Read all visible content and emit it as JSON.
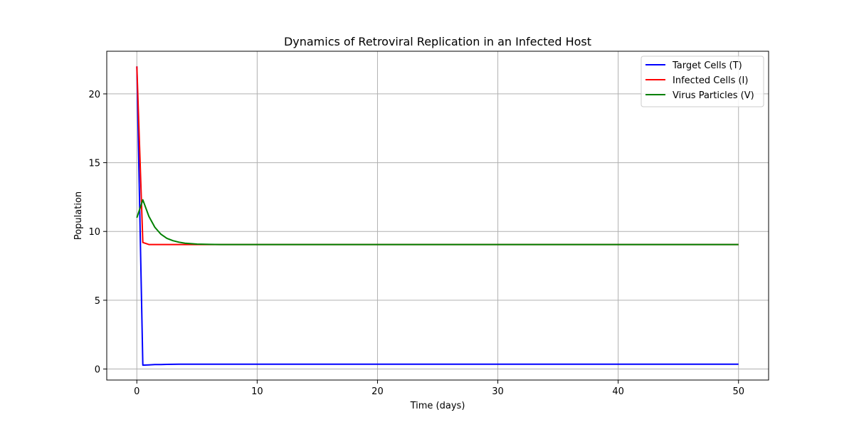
{
  "chart_data": {
    "type": "line",
    "title": "Dynamics of Retroviral Replication in an Infected Host",
    "xlabel": "Time (days)",
    "ylabel": "Population",
    "xlim": [
      -2.5,
      52.5
    ],
    "ylim": [
      -0.8,
      23.1
    ],
    "xticks": [
      0,
      10,
      20,
      30,
      40,
      50
    ],
    "yticks": [
      0,
      5,
      10,
      15,
      20
    ],
    "grid": true,
    "legend_position": "top-right",
    "x": [
      0,
      0.5,
      1,
      1.5,
      2,
      2.5,
      3,
      3.5,
      4,
      5,
      6,
      7,
      8,
      10,
      15,
      20,
      30,
      40,
      50
    ],
    "series": [
      {
        "name": "Target Cells (T)",
        "color": "#0000ff",
        "values": [
          22.0,
          0.28,
          0.3,
          0.32,
          0.33,
          0.34,
          0.345,
          0.35,
          0.35,
          0.35,
          0.35,
          0.35,
          0.35,
          0.35,
          0.35,
          0.35,
          0.35,
          0.35,
          0.35
        ]
      },
      {
        "name": "Infected Cells (I)",
        "color": "#ff0000",
        "values": [
          22.0,
          9.2,
          9.05,
          9.05,
          9.05,
          9.05,
          9.05,
          9.05,
          9.05,
          9.05,
          9.05,
          9.05,
          9.05,
          9.05,
          9.05,
          9.05,
          9.05,
          9.05,
          9.05
        ]
      },
      {
        "name": "Virus Particles (V)",
        "color": "#008000",
        "values": [
          11.0,
          12.3,
          11.1,
          10.3,
          9.8,
          9.5,
          9.33,
          9.22,
          9.15,
          9.08,
          9.06,
          9.05,
          9.05,
          9.05,
          9.05,
          9.05,
          9.05,
          9.05,
          9.05
        ]
      }
    ]
  }
}
